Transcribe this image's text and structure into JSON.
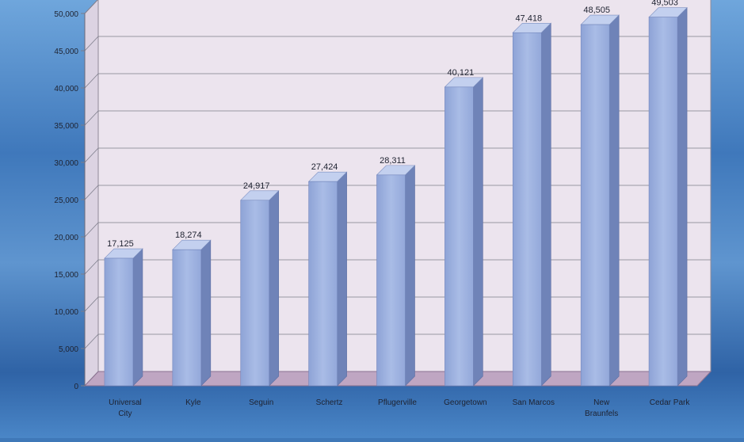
{
  "chart_data": {
    "type": "bar",
    "categories": [
      "Universal City",
      "Kyle",
      "Seguin",
      "Schertz",
      "Pflugerville",
      "Georgetown",
      "San Marcos",
      "New Braunfels",
      "Cedar Park"
    ],
    "values": [
      17125,
      18274,
      24917,
      27424,
      28311,
      40121,
      47418,
      48505,
      49503
    ],
    "data_labels": [
      "17,125",
      "18,274",
      "24,917",
      "27,424",
      "28,311",
      "40,121",
      "47,418",
      "48,505",
      "49,503"
    ],
    "y_ticks": [
      0,
      5000,
      10000,
      15000,
      20000,
      25000,
      30000,
      35000,
      40000,
      45000,
      50000
    ],
    "y_tick_labels": [
      "0",
      "5,000",
      "10,000",
      "15,000",
      "20,000",
      "25,000",
      "30,000",
      "35,000",
      "40,000",
      "45,000",
      "50,000"
    ],
    "ylim": [
      0,
      50000
    ],
    "title": "",
    "xlabel": "",
    "ylabel": "",
    "grid": true,
    "legend": "none",
    "style": "3d-bar",
    "colors": {
      "bar_front": "#9fb3df",
      "bar_side": "#6f83b8",
      "bar_top": "#c3d0ef",
      "plot_back": "#ece4ee",
      "side_wall": "#dcd3e2",
      "floor": "#bfa6c2",
      "grid": "#7d7d8a",
      "text": "#1e2230",
      "background": "#3f78b8"
    }
  }
}
